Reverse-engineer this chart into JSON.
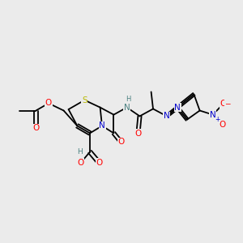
{
  "bg_color": "#ebebeb",
  "bond_color": "#000000",
  "lw": 1.3,
  "fsize": 7.5,
  "atom_colors": {
    "O": "#ff0000",
    "N": "#0000cc",
    "S": "#b8b800",
    "H": "#4a8080",
    "C": "#000000"
  }
}
